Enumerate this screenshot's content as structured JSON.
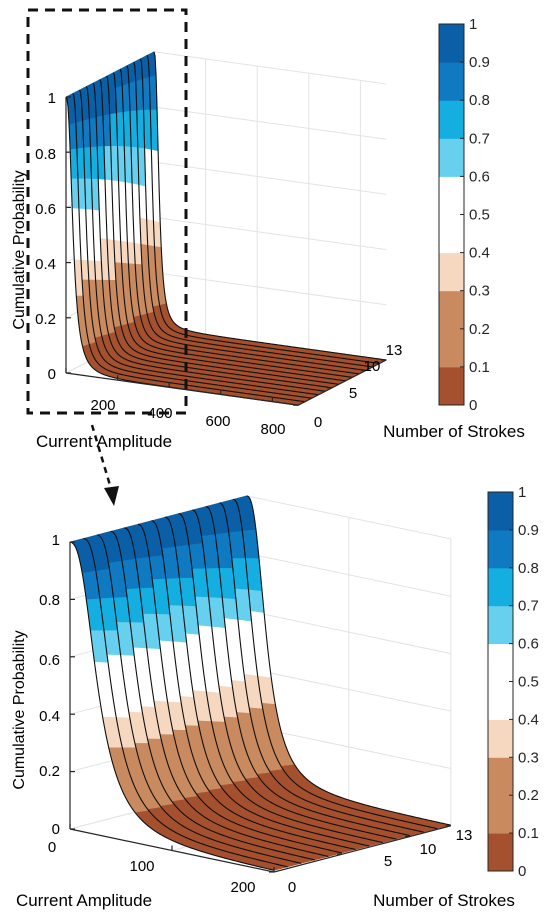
{
  "palette": {
    "grid": "#e3e3e3",
    "axis": "#262626",
    "stroke_line": "#111111",
    "highlight_box": "#111111",
    "band_colors": [
      "#a5502e",
      "#c98a5f",
      "#f6d7c0",
      "#ffffff",
      "#67d0ee",
      "#14aee0",
      "#0f79c1",
      "#0b5fa7"
    ]
  },
  "colorbar": {
    "tick_labels": [
      "0",
      "0.1",
      "0.2",
      "0.3",
      "0.4",
      "0.5",
      "0.6",
      "0.7",
      "0.8",
      "0.9",
      "1"
    ],
    "levels": [
      0,
      0.1,
      0.2,
      0.3,
      0.4,
      0.5,
      0.6,
      0.7,
      0.8,
      0.9,
      1
    ],
    "band_color_index": [
      0,
      1,
      1,
      2,
      3,
      3,
      4,
      5,
      6,
      7
    ]
  },
  "chart_data": [
    {
      "type": "surface",
      "panel": "top",
      "title": "",
      "xlabel": "Current Amplitude",
      "ylabel": "Number of Strokes",
      "zlabel": "Cumulative Probability",
      "x_ticks": [
        "200",
        "400",
        "600",
        "800"
      ],
      "y_ticks": [
        "0",
        "5",
        "10",
        "13"
      ],
      "z_ticks": [
        "0",
        "0.2",
        "0.4",
        "0.6",
        "0.8",
        "1"
      ],
      "xlim": [
        0,
        900
      ],
      "ylim": [
        0,
        13
      ],
      "zlim": [
        0,
        1
      ],
      "series": [
        {
          "strokes": 0,
          "median_current": 28
        },
        {
          "strokes": 13,
          "median_current": 20
        }
      ],
      "highlight_region": {
        "xlim": [
          0,
          200
        ],
        "note": "dashed box"
      }
    },
    {
      "type": "surface",
      "panel": "bottom",
      "title": "",
      "xlabel": "Current Amplitude",
      "ylabel": "Number of Strokes",
      "zlabel": "Cumulative Probability",
      "x_ticks": [
        "0",
        "100",
        "200"
      ],
      "y_ticks": [
        "0",
        "5",
        "10",
        "13"
      ],
      "z_ticks": [
        "0",
        "0.2",
        "0.4",
        "0.6",
        "0.8",
        "1"
      ],
      "xlim": [
        0,
        200
      ],
      "ylim": [
        0,
        13
      ],
      "zlim": [
        0,
        1
      ],
      "series": [
        {
          "strokes": 0,
          "median_current": 28
        },
        {
          "strokes": 13,
          "median_current": 20
        }
      ]
    }
  ]
}
